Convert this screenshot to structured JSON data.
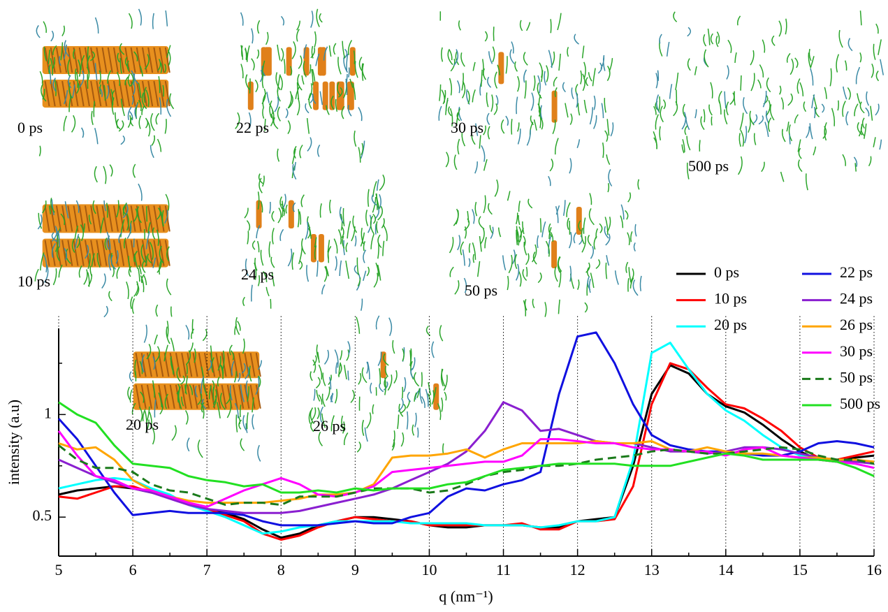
{
  "chart_data": {
    "type": "line",
    "x_label": "q (nm⁻¹)",
    "y_label": "intensity (a.u)",
    "x": [
      5,
      5.25,
      5.5,
      5.75,
      6,
      6.25,
      6.5,
      6.75,
      7,
      7.25,
      7.5,
      7.75,
      8,
      8.25,
      8.5,
      8.75,
      9,
      9.25,
      9.5,
      9.75,
      10,
      10.25,
      10.5,
      10.75,
      11,
      11.25,
      11.5,
      11.75,
      12,
      12.25,
      12.5,
      12.75,
      13,
      13.25,
      13.5,
      13.75,
      14,
      14.25,
      14.5,
      14.75,
      15,
      15.25,
      15.5,
      15.75,
      16
    ],
    "xlim": [
      5,
      16
    ],
    "ylim": [
      0.31,
      1.42
    ],
    "xticks": [
      5,
      6,
      7,
      8,
      9,
      10,
      11,
      12,
      13,
      14,
      15,
      16
    ],
    "xminorticks": [
      5.5,
      6.5,
      7.5,
      8.5,
      9.5,
      10.5,
      11.5,
      12.5,
      13.5,
      14.5,
      15.5
    ],
    "yticks": [
      0.5,
      1
    ],
    "yminorticks": [
      0.75,
      1.25
    ],
    "grid": "x",
    "legend": "upper right",
    "series": [
      {
        "name": "0 ps",
        "color": "#000000",
        "values": [
          0.61,
          0.63,
          0.64,
          0.65,
          0.64,
          0.62,
          0.6,
          0.57,
          0.54,
          0.52,
          0.49,
          0.44,
          0.4,
          0.42,
          0.46,
          0.48,
          0.5,
          0.5,
          0.49,
          0.48,
          0.46,
          0.45,
          0.45,
          0.46,
          0.46,
          0.46,
          0.45,
          0.45,
          0.48,
          0.49,
          0.5,
          0.75,
          1.1,
          1.24,
          1.2,
          1.1,
          1.04,
          1.01,
          0.95,
          0.88,
          0.82,
          0.78,
          0.77,
          0.79,
          0.8
        ]
      },
      {
        "name": "10 ps",
        "color": "#ff0000",
        "values": [
          0.6,
          0.59,
          0.62,
          0.65,
          0.65,
          0.62,
          0.6,
          0.57,
          0.54,
          0.51,
          0.48,
          0.42,
          0.39,
          0.41,
          0.45,
          0.48,
          0.5,
          0.49,
          0.48,
          0.48,
          0.46,
          0.46,
          0.46,
          0.46,
          0.46,
          0.47,
          0.44,
          0.44,
          0.48,
          0.48,
          0.49,
          0.65,
          1.05,
          1.25,
          1.22,
          1.13,
          1.05,
          1.03,
          0.98,
          0.92,
          0.84,
          0.79,
          0.78,
          0.8,
          0.82
        ]
      },
      {
        "name": "20 ps",
        "color": "#00ffff",
        "values": [
          0.64,
          0.66,
          0.68,
          0.69,
          0.68,
          0.64,
          0.61,
          0.56,
          0.53,
          0.5,
          0.46,
          0.42,
          0.43,
          0.45,
          0.46,
          0.48,
          0.48,
          0.48,
          0.48,
          0.47,
          0.47,
          0.47,
          0.47,
          0.46,
          0.46,
          0.46,
          0.45,
          0.46,
          0.48,
          0.48,
          0.5,
          0.78,
          1.3,
          1.35,
          1.22,
          1.1,
          1.02,
          0.97,
          0.9,
          0.84,
          0.8,
          0.79,
          0.78,
          0.77,
          0.76
        ]
      },
      {
        "name": "22 ps",
        "color": "#1010e0",
        "values": [
          0.98,
          0.88,
          0.75,
          0.62,
          0.51,
          0.52,
          0.53,
          0.52,
          0.52,
          0.52,
          0.51,
          0.48,
          0.46,
          0.46,
          0.46,
          0.47,
          0.48,
          0.47,
          0.47,
          0.5,
          0.52,
          0.6,
          0.64,
          0.63,
          0.66,
          0.68,
          0.72,
          1.1,
          1.38,
          1.4,
          1.25,
          1.05,
          0.9,
          0.85,
          0.83,
          0.82,
          0.82,
          0.81,
          0.8,
          0.8,
          0.82,
          0.86,
          0.87,
          0.86,
          0.84
        ]
      },
      {
        "name": "24 ps",
        "color": "#8a1fd0",
        "values": [
          0.78,
          0.74,
          0.7,
          0.67,
          0.64,
          0.62,
          0.59,
          0.56,
          0.54,
          0.53,
          0.52,
          0.52,
          0.52,
          0.53,
          0.55,
          0.57,
          0.59,
          0.61,
          0.64,
          0.68,
          0.72,
          0.76,
          0.82,
          0.92,
          1.06,
          1.02,
          0.92,
          0.93,
          0.9,
          0.87,
          0.86,
          0.86,
          0.84,
          0.82,
          0.82,
          0.81,
          0.82,
          0.84,
          0.84,
          0.83,
          0.81,
          0.79,
          0.78,
          0.77,
          0.76
        ]
      },
      {
        "name": "26 ps",
        "color": "#ffa500",
        "values": [
          0.86,
          0.83,
          0.84,
          0.78,
          0.68,
          0.63,
          0.6,
          0.58,
          0.57,
          0.57,
          0.57,
          0.57,
          0.58,
          0.59,
          0.61,
          0.61,
          0.62,
          0.66,
          0.79,
          0.8,
          0.8,
          0.81,
          0.83,
          0.79,
          0.83,
          0.86,
          0.86,
          0.86,
          0.86,
          0.87,
          0.86,
          0.86,
          0.87,
          0.83,
          0.82,
          0.84,
          0.82,
          0.81,
          0.81,
          0.8,
          0.79,
          0.79,
          0.78,
          0.78,
          0.77
        ]
      },
      {
        "name": "30 ps",
        "color": "#ff00ff",
        "values": [
          0.92,
          0.8,
          0.7,
          0.68,
          0.64,
          0.63,
          0.6,
          0.57,
          0.55,
          0.59,
          0.63,
          0.66,
          0.69,
          0.66,
          0.61,
          0.6,
          0.62,
          0.65,
          0.72,
          0.73,
          0.74,
          0.75,
          0.76,
          0.77,
          0.77,
          0.8,
          0.88,
          0.88,
          0.87,
          0.86,
          0.86,
          0.84,
          0.83,
          0.83,
          0.82,
          0.82,
          0.8,
          0.83,
          0.84,
          0.8,
          0.79,
          0.78,
          0.77,
          0.76,
          0.74
        ]
      },
      {
        "name": "50 ps",
        "color": "#1a7a1a",
        "style": "dashed",
        "values": [
          0.85,
          0.78,
          0.74,
          0.74,
          0.72,
          0.66,
          0.63,
          0.62,
          0.59,
          0.56,
          0.57,
          0.57,
          0.56,
          0.6,
          0.6,
          0.6,
          0.62,
          0.64,
          0.64,
          0.64,
          0.62,
          0.63,
          0.66,
          0.7,
          0.72,
          0.73,
          0.75,
          0.75,
          0.76,
          0.78,
          0.79,
          0.8,
          0.82,
          0.83,
          0.82,
          0.81,
          0.81,
          0.82,
          0.83,
          0.84,
          0.83,
          0.8,
          0.78,
          0.78,
          0.76
        ]
      },
      {
        "name": "500 ps",
        "color": "#22e022",
        "values": [
          1.06,
          1.0,
          0.96,
          0.85,
          0.76,
          0.75,
          0.74,
          0.7,
          0.68,
          0.67,
          0.65,
          0.66,
          0.62,
          0.62,
          0.63,
          0.62,
          0.64,
          0.63,
          0.64,
          0.64,
          0.64,
          0.66,
          0.67,
          0.7,
          0.73,
          0.74,
          0.75,
          0.76,
          0.76,
          0.76,
          0.76,
          0.75,
          0.75,
          0.75,
          0.77,
          0.79,
          0.81,
          0.8,
          0.78,
          0.78,
          0.78,
          0.78,
          0.77,
          0.74,
          0.7
        ]
      }
    ],
    "snapshots": [
      {
        "label": "0 ps"
      },
      {
        "label": "10 ps"
      },
      {
        "label": "20 ps"
      },
      {
        "label": "22 ps"
      },
      {
        "label": "24 ps"
      },
      {
        "label": "26 ps"
      },
      {
        "label": "30 ps"
      },
      {
        "label": "50 ps"
      },
      {
        "label": "500 ps"
      }
    ]
  }
}
